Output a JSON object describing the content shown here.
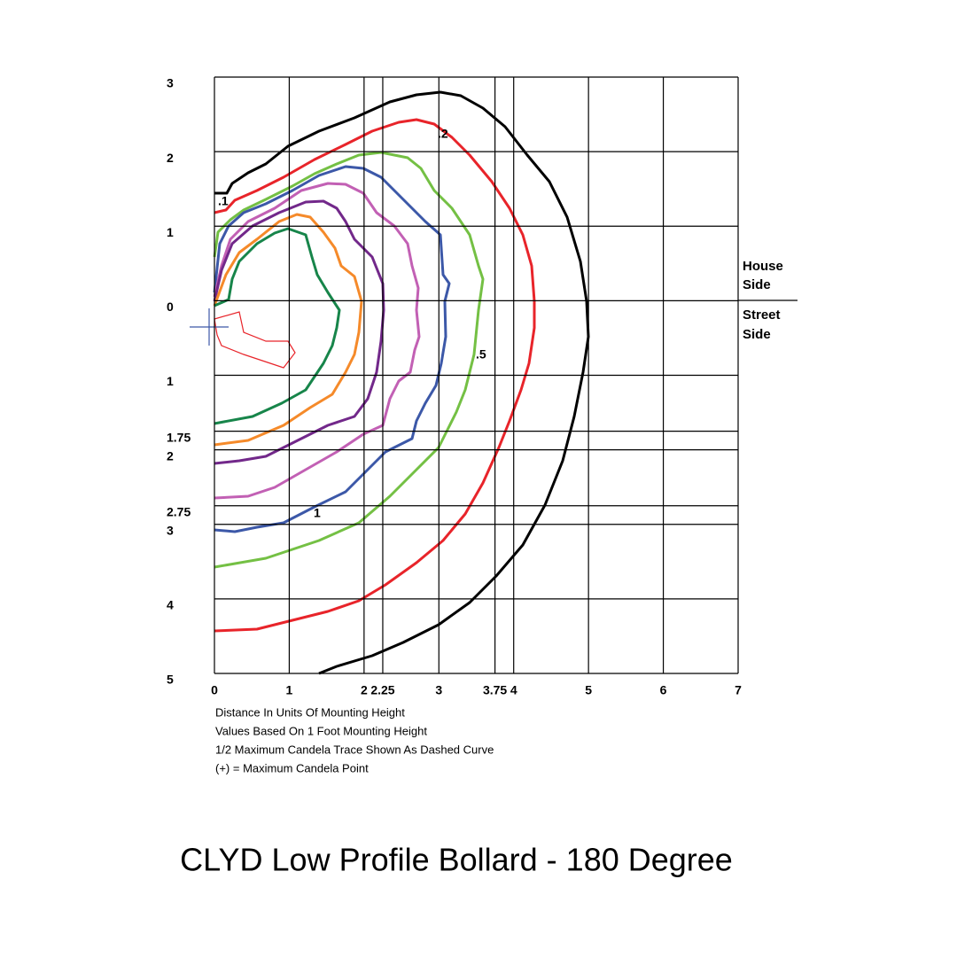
{
  "chart_data": {
    "type": "isofootcandle",
    "xlim": [
      0,
      7
    ],
    "xticks": [
      0,
      1,
      2,
      2.25,
      3,
      3.75,
      4,
      5,
      6,
      7
    ],
    "ylim": [
      -5,
      3
    ],
    "yticks": [
      3,
      2,
      1,
      0,
      {
        "value": -1,
        "label": "1"
      },
      {
        "value": -1.75,
        "label": "1.75"
      },
      {
        "value": -2,
        "label": "2"
      },
      {
        "value": -2.75,
        "label": "2.75"
      },
      {
        "value": -3,
        "label": "3"
      },
      {
        "value": -4,
        "label": "4"
      },
      {
        "value": -5,
        "label": "5"
      }
    ],
    "grid": true,
    "house_side": [
      "House",
      "Side"
    ],
    "street_side": [
      "Street",
      "Side"
    ],
    "contour_labels": [
      ".1",
      ".2",
      ".5",
      "1"
    ],
    "notes": [
      "Distance In Units Of Mounting Height",
      "Values Based On 1 Foot Mounting Height",
      "1/2 Maximum Candela Trace Shown As Dashed Curve",
      "(+) = Maximum Candela Point"
    ],
    "title": "CLYD Low Profile Bollard - 180 Degree"
  }
}
